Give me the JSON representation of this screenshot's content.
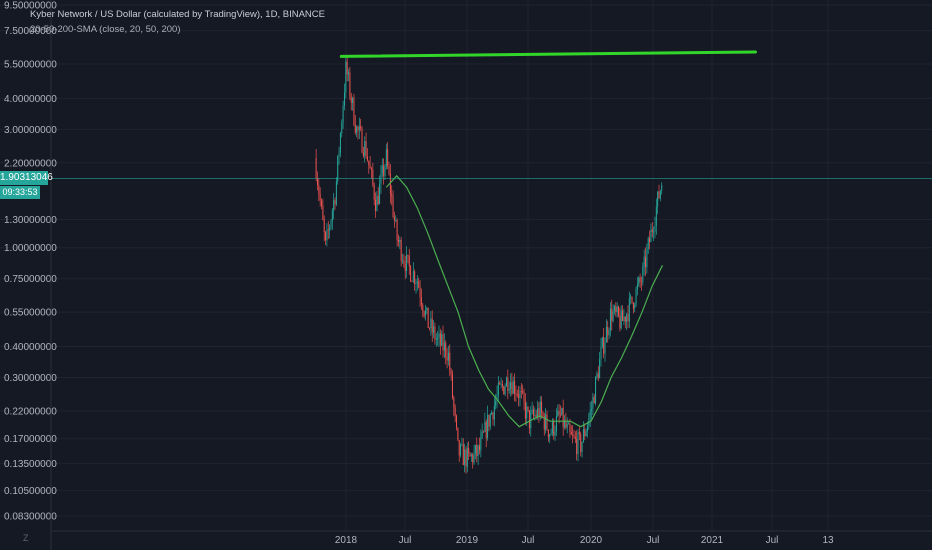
{
  "header": {
    "title": "Kyber Network / US Dollar (calculated by TradingView), 1D, BINANCE",
    "study": "20-50-200-SMA (close, 20, 50, 200)"
  },
  "badges": {
    "price": "1.90313046",
    "countdown": "09:33:53"
  },
  "footer": {
    "z_icon": "Z"
  },
  "colors": {
    "background": "#151924",
    "grid": "#1f2431",
    "axis_text": "#b2b5be",
    "candle_up": "#26a69a",
    "candle_down": "#ef5350",
    "sma": "#4caf50",
    "trendline": "#32d62a",
    "price_line": "#26a69a"
  },
  "chart_data": {
    "type": "candlestick",
    "y_scale": "log",
    "y_ticks": [
      "9.50000000",
      "7.50000000",
      "5.50000000",
      "4.00000000",
      "3.00000000",
      "2.20000000",
      "1.30000000",
      "1.00000000",
      "0.75000000",
      "0.55000000",
      "0.40000000",
      "0.30000000",
      "0.22000000",
      "0.17000000",
      "0.13500000",
      "0.10500000",
      "0.08300000"
    ],
    "x_ticks": [
      "2018",
      "Jul",
      "2019",
      "Jul",
      "2020",
      "Jul",
      "2021",
      "Jul",
      "13"
    ],
    "last_price": 1.90313046,
    "price_series": {
      "dates": [
        "2017-10",
        "2017-11",
        "2017-12",
        "2018-01",
        "2018-02",
        "2018-03",
        "2018-04",
        "2018-05",
        "2018-06",
        "2018-07",
        "2018-08",
        "2018-09",
        "2018-10",
        "2018-11",
        "2018-12",
        "2019-01",
        "2019-02",
        "2019-03",
        "2019-04",
        "2019-05",
        "2019-06",
        "2019-07",
        "2019-08",
        "2019-09",
        "2019-10",
        "2019-11",
        "2019-12",
        "2020-01",
        "2020-02",
        "2020-03",
        "2020-04",
        "2020-05",
        "2020-06",
        "2020-07",
        "2020-08"
      ],
      "close": [
        2.3,
        1.0,
        1.7,
        5.3,
        3.0,
        2.5,
        1.5,
        2.3,
        1.1,
        0.85,
        0.75,
        0.5,
        0.42,
        0.38,
        0.15,
        0.14,
        0.15,
        0.2,
        0.26,
        0.3,
        0.26,
        0.2,
        0.22,
        0.18,
        0.21,
        0.17,
        0.16,
        0.22,
        0.38,
        0.55,
        0.5,
        0.6,
        0.75,
        1.2,
        1.9
      ]
    },
    "sma": {
      "name": "SMA 200",
      "dates": [
        "2018-05",
        "2018-06",
        "2018-07",
        "2018-08",
        "2018-09",
        "2018-10",
        "2018-11",
        "2018-12",
        "2019-01",
        "2019-02",
        "2019-03",
        "2019-04",
        "2019-05",
        "2019-06",
        "2019-07",
        "2019-08",
        "2019-09",
        "2019-10",
        "2019-11",
        "2019-12",
        "2020-01",
        "2020-02",
        "2020-03",
        "2020-04",
        "2020-05",
        "2020-06",
        "2020-07",
        "2020-08"
      ],
      "values": [
        1.75,
        1.95,
        1.75,
        1.45,
        1.15,
        0.9,
        0.7,
        0.55,
        0.4,
        0.32,
        0.27,
        0.24,
        0.21,
        0.19,
        0.2,
        0.21,
        0.2,
        0.2,
        0.2,
        0.19,
        0.2,
        0.24,
        0.3,
        0.36,
        0.44,
        0.55,
        0.7,
        0.85
      ]
    },
    "trendline": {
      "dates": [
        "2017-12-18",
        "2021-05-05"
      ],
      "values": [
        5.9,
        6.15
      ]
    },
    "grid": true
  }
}
